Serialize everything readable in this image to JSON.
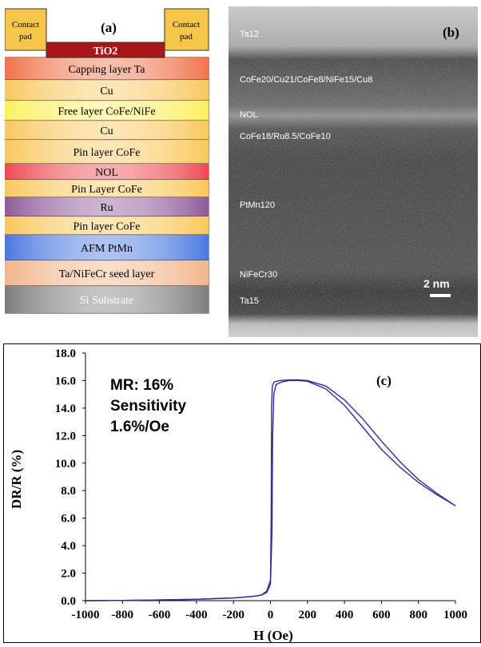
{
  "panel_a": {
    "label": "(a)",
    "contact_pad": "Contact pad",
    "contact_pad_lines": [
      "Contact",
      "pad"
    ],
    "tio2": "TiO2",
    "layers": [
      {
        "name": "Capping layer Ta",
        "color": "#f0734a"
      },
      {
        "name": "Cu",
        "color": "#f9c85c"
      },
      {
        "name": "Free layer CoFe/NiFe",
        "color": "#fbf060"
      },
      {
        "name": "Cu",
        "color": "#f9c85c"
      },
      {
        "name": "Pin layer CoFe",
        "color": "#f9c85c"
      },
      {
        "name": "NOL",
        "color": "#ec4a52"
      },
      {
        "name": "Pin Layer CoFe",
        "color": "#f9c85c"
      },
      {
        "name": "Ru",
        "color": "#8f5a9a"
      },
      {
        "name": "Pin layer CoFe",
        "color": "#f9c85c"
      },
      {
        "name": "AFM PtMn",
        "color": "#4a78e0"
      },
      {
        "name": "Ta/NiFeCr seed layer",
        "color": "#f2b58a"
      },
      {
        "name": "Si Substrate",
        "color": "#7d7d7d"
      }
    ],
    "colors": {
      "contact_pad": "#f5c64a",
      "tio2": "#a81818",
      "border": "#333333"
    }
  },
  "panel_b": {
    "label": "(b)",
    "annotations": [
      "Ta12",
      "CoFe20/Cu21/CoFe8/NiFe15/Cu8",
      "NOL",
      "CoFe18/Ru8.5/CoFe10",
      "PtMn120",
      "NiFeCr30",
      "Ta15"
    ],
    "scale_bar": "2 nm"
  },
  "chart_data": {
    "type": "line",
    "panel_label": "(c)",
    "xlabel": "H (Oe)",
    "ylabel": "DR/R (%)",
    "xlim": [
      -1000,
      1000
    ],
    "ylim": [
      0,
      18
    ],
    "xticks": [
      "-1000",
      "-800",
      "-600",
      "-400",
      "-200",
      "0",
      "200",
      "400",
      "600",
      "800",
      "1000"
    ],
    "yticks": [
      "0.0",
      "2.0",
      "4.0",
      "6.0",
      "8.0",
      "10.0",
      "12.0",
      "14.0",
      "16.0",
      "18.0"
    ],
    "annotation": [
      "MR: 16%",
      "Sensitivity",
      "1.6%/Oe"
    ],
    "line_color": "#2e3192",
    "series": [
      {
        "x": [
          -1000,
          -800,
          -600,
          -400,
          -200,
          -100,
          -50,
          -20,
          0,
          8,
          12,
          18,
          30,
          60,
          100,
          150,
          200,
          300,
          400,
          500,
          600,
          700,
          800,
          900,
          1000
        ],
        "y": [
          0.0,
          0.02,
          0.05,
          0.1,
          0.2,
          0.3,
          0.4,
          0.6,
          1.2,
          5.0,
          12.0,
          15.0,
          15.7,
          15.9,
          16.0,
          16.0,
          15.95,
          15.4,
          14.2,
          12.6,
          11.0,
          9.7,
          8.6,
          7.7,
          6.9
        ]
      },
      {
        "x": [
          -1000,
          -800,
          -600,
          -400,
          -200,
          -100,
          -50,
          -20,
          0,
          4,
          6,
          10,
          20,
          50,
          100,
          150,
          200,
          300,
          400,
          500,
          600,
          700,
          800,
          900,
          1000
        ],
        "y": [
          0.0,
          0.02,
          0.05,
          0.1,
          0.2,
          0.3,
          0.4,
          0.7,
          1.5,
          6.0,
          14.0,
          15.6,
          15.9,
          16.0,
          16.05,
          16.05,
          16.0,
          15.6,
          14.6,
          13.2,
          11.6,
          10.1,
          8.8,
          7.8,
          6.9
        ]
      }
    ]
  }
}
